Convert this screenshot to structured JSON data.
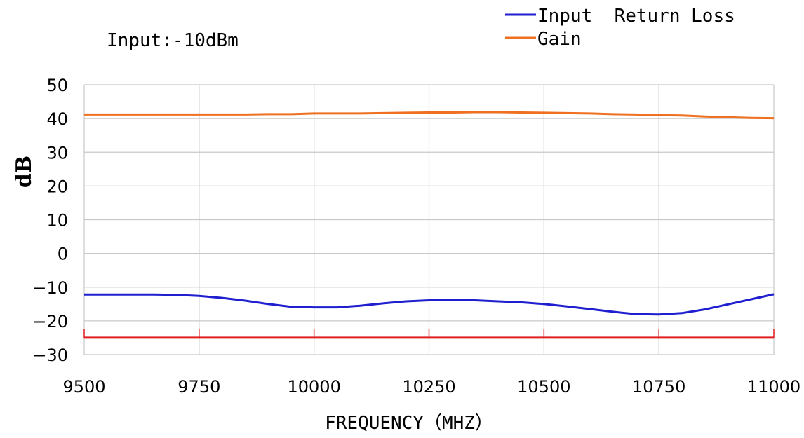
{
  "chart_data": {
    "type": "line",
    "annotation": "Input:-10dBm",
    "xlabel": "FREQUENCY（MHZ）",
    "ylabel": "dB",
    "xlim": [
      9500,
      11000
    ],
    "ylim": [
      -30,
      50
    ],
    "x_ticks": [
      9500,
      9750,
      10000,
      10250,
      10500,
      10750,
      11000
    ],
    "y_ticks": [
      -30,
      -20,
      -10,
      0,
      10,
      20,
      30,
      40,
      50
    ],
    "grid": true,
    "legend_position": "top-right",
    "series": [
      {
        "name": "Input  Return Loss",
        "color": "#1f1fd0",
        "x": [
          9500,
          9550,
          9600,
          9650,
          9700,
          9750,
          9800,
          9850,
          9900,
          9950,
          10000,
          10050,
          10100,
          10150,
          10200,
          10250,
          10300,
          10350,
          10400,
          10450,
          10500,
          10550,
          10600,
          10650,
          10700,
          10750,
          10800,
          10850,
          10900,
          10950,
          11000
        ],
        "values": [
          -12.2,
          -12.2,
          -12.2,
          -12.2,
          -12.3,
          -12.6,
          -13.2,
          -14.0,
          -15.0,
          -15.8,
          -16.0,
          -16.0,
          -15.5,
          -14.8,
          -14.2,
          -13.9,
          -13.8,
          -13.9,
          -14.2,
          -14.5,
          -15.0,
          -15.7,
          -16.5,
          -17.3,
          -18.0,
          -18.1,
          -17.7,
          -16.6,
          -15.1,
          -13.6,
          -12.1
        ]
      },
      {
        "name": "Gain",
        "color": "#ee7020",
        "x": [
          9500,
          9550,
          9600,
          9650,
          9700,
          9750,
          9800,
          9850,
          9900,
          9950,
          10000,
          10050,
          10100,
          10150,
          10200,
          10250,
          10300,
          10350,
          10400,
          10450,
          10500,
          10550,
          10600,
          10650,
          10700,
          10750,
          10800,
          10850,
          10900,
          10950,
          11000
        ],
        "values": [
          41.2,
          41.2,
          41.2,
          41.2,
          41.2,
          41.2,
          41.2,
          41.2,
          41.3,
          41.3,
          41.5,
          41.5,
          41.5,
          41.6,
          41.7,
          41.8,
          41.8,
          41.9,
          41.9,
          41.8,
          41.7,
          41.6,
          41.5,
          41.3,
          41.2,
          41.0,
          40.9,
          40.6,
          40.4,
          40.2,
          40.1
        ]
      },
      {
        "color": "#e02020",
        "x": [
          9500,
          11000
        ],
        "values": [
          -25,
          -25
        ]
      }
    ]
  }
}
